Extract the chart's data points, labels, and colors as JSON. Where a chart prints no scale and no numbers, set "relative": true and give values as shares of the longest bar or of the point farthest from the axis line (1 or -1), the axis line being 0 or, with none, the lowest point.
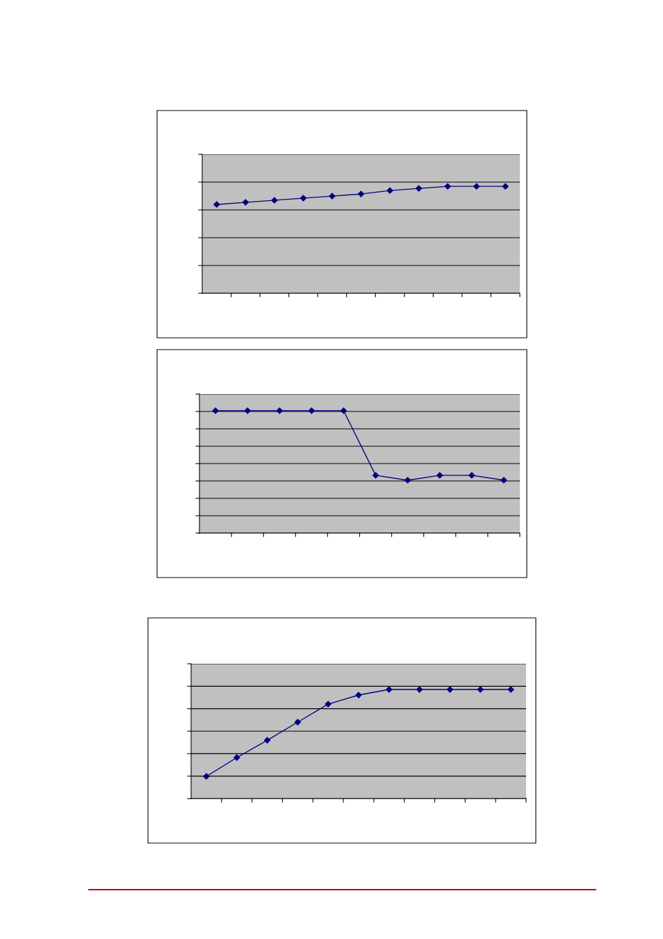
{
  "chart_data": [
    {
      "type": "line",
      "relative": true,
      "categories": [
        null,
        null,
        null,
        null,
        null,
        null,
        null,
        null,
        null,
        null,
        null
      ],
      "grid": "y",
      "marker": "diamond",
      "series": [
        {
          "color": "#000080",
          "values": [
            0.831,
            0.851,
            0.87,
            0.89,
            0.909,
            0.929,
            0.961,
            0.981,
            1,
            1,
            1
          ]
        }
      ]
    },
    {
      "type": "line",
      "relative": true,
      "categories": [
        null,
        null,
        null,
        null,
        null,
        null,
        null,
        null,
        null,
        null
      ],
      "grid": "y",
      "marker": "diamond",
      "series": [
        {
          "color": "#000080",
          "values": [
            1,
            1,
            1,
            1,
            1,
            0.472,
            0.432,
            0.472,
            0.472,
            0.432
          ]
        }
      ]
    },
    {
      "type": "line",
      "relative": true,
      "categories": [
        null,
        null,
        null,
        null,
        null,
        null,
        null,
        null,
        null,
        null,
        null
      ],
      "grid": "y",
      "marker": "diamond",
      "series": [
        {
          "color": "#000080",
          "values": [
            0.204,
            0.376,
            0.535,
            0.701,
            0.866,
            0.949,
            1,
            1,
            1,
            1,
            1
          ]
        }
      ]
    }
  ]
}
